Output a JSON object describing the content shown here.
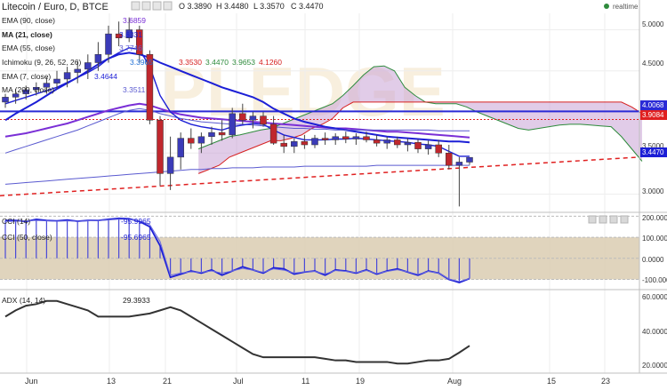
{
  "header": {
    "symbol": "Litecoin / Euro, D, BTCE",
    "ohlc": [
      "O 3.3890",
      "H 3.4480",
      "L 3.3570",
      "C 3.4470"
    ],
    "realtime": "realtime",
    "realtime_color": "#2e8b3c"
  },
  "indicators": [
    {
      "label": "EMA (90, close)",
      "value": "3.6859",
      "color": "#7a2fd6"
    },
    {
      "label": "MA (21, close)",
      "value": "3.6331",
      "color": "#1c1fd6"
    },
    {
      "label": "EMA (55, close)",
      "value": "3.7746",
      "color": "#5a5ad0"
    },
    {
      "label": "Ichimoku (9, 26, 52, 26)",
      "values": [
        "3.3965",
        "3.3530",
        "3.4470",
        "3.9653",
        "4.1260"
      ],
      "value_colors": [
        "#1e6fd6",
        "#d62020",
        "#2e8b3c",
        "#2e8b3c",
        "#d62020"
      ]
    },
    {
      "label": "EMA (7, close)",
      "value": "3.4644",
      "color": "#1c1fd6"
    },
    {
      "label": "MA (200, close)",
      "value": "3.3511",
      "color": "#5a5ad0"
    }
  ],
  "price_axis": {
    "ticks": [
      "5.0000",
      "4.5000",
      "4.0000",
      "3.5000",
      "3.0000"
    ],
    "badges": [
      {
        "text": "4.0068",
        "bg": "#2a2ad6"
      },
      {
        "text": "3.9084",
        "bg": "#e02020"
      },
      {
        "text": "3.4470",
        "bg": "#1c1fd6"
      }
    ]
  },
  "cci_panel": {
    "labels": [
      "CCI (14)",
      "CCI (50, close)"
    ],
    "values": [
      "-95.9965",
      "-95.6965"
    ],
    "ticks": [
      "200.0000",
      "100.0000",
      "0.0000",
      "-100.0000"
    ]
  },
  "adx_panel": {
    "label": "ADX (14, 14)",
    "value": "29.3933",
    "ticks": [
      "60.0000",
      "40.0000",
      "20.0000"
    ]
  },
  "x_axis": {
    "ticks": [
      "Jun",
      "13",
      "21",
      "Jul",
      "11",
      "19",
      "Aug",
      "15",
      "23"
    ]
  },
  "chart_data": {
    "type": "candlestick",
    "price_range": [
      2.8,
      5.2
    ],
    "candles": [
      {
        "o": 4.12,
        "h": 4.22,
        "l": 4.05,
        "c": 4.18
      },
      {
        "o": 4.18,
        "h": 4.28,
        "l": 4.1,
        "c": 4.22
      },
      {
        "o": 4.22,
        "h": 4.32,
        "l": 4.15,
        "c": 4.27
      },
      {
        "o": 4.27,
        "h": 4.36,
        "l": 4.2,
        "c": 4.3
      },
      {
        "o": 4.3,
        "h": 4.42,
        "l": 4.22,
        "c": 4.35
      },
      {
        "o": 4.35,
        "h": 4.5,
        "l": 4.28,
        "c": 4.4
      },
      {
        "o": 4.4,
        "h": 4.55,
        "l": 4.3,
        "c": 4.48
      },
      {
        "o": 4.48,
        "h": 4.62,
        "l": 4.35,
        "c": 4.52
      },
      {
        "o": 4.52,
        "h": 4.7,
        "l": 4.4,
        "c": 4.6
      },
      {
        "o": 4.6,
        "h": 4.85,
        "l": 4.5,
        "c": 4.7
      },
      {
        "o": 4.7,
        "h": 5.05,
        "l": 4.6,
        "c": 4.95
      },
      {
        "o": 4.95,
        "h": 5.1,
        "l": 4.8,
        "c": 4.9
      },
      {
        "o": 4.9,
        "h": 5.15,
        "l": 4.85,
        "c": 5.0
      },
      {
        "o": 5.0,
        "h": 5.05,
        "l": 4.6,
        "c": 4.7
      },
      {
        "o": 4.7,
        "h": 4.75,
        "l": 3.85,
        "c": 3.9
      },
      {
        "o": 3.9,
        "h": 3.95,
        "l": 3.1,
        "c": 3.25
      },
      {
        "o": 3.25,
        "h": 3.7,
        "l": 3.05,
        "c": 3.45
      },
      {
        "o": 3.45,
        "h": 3.75,
        "l": 3.3,
        "c": 3.68
      },
      {
        "o": 3.68,
        "h": 3.8,
        "l": 3.55,
        "c": 3.62
      },
      {
        "o": 3.62,
        "h": 3.75,
        "l": 3.5,
        "c": 3.7
      },
      {
        "o": 3.7,
        "h": 3.82,
        "l": 3.6,
        "c": 3.75
      },
      {
        "o": 3.75,
        "h": 3.9,
        "l": 3.65,
        "c": 3.72
      },
      {
        "o": 3.72,
        "h": 4.05,
        "l": 3.68,
        "c": 3.98
      },
      {
        "o": 3.98,
        "h": 4.1,
        "l": 3.85,
        "c": 3.9
      },
      {
        "o": 3.9,
        "h": 4.0,
        "l": 3.8,
        "c": 3.95
      },
      {
        "o": 3.95,
        "h": 4.0,
        "l": 3.82,
        "c": 3.85
      },
      {
        "o": 3.85,
        "h": 3.95,
        "l": 3.6,
        "c": 3.62
      },
      {
        "o": 3.62,
        "h": 3.72,
        "l": 3.5,
        "c": 3.58
      },
      {
        "o": 3.58,
        "h": 3.68,
        "l": 3.5,
        "c": 3.64
      },
      {
        "o": 3.64,
        "h": 3.72,
        "l": 3.55,
        "c": 3.6
      },
      {
        "o": 3.6,
        "h": 3.72,
        "l": 3.56,
        "c": 3.68
      },
      {
        "o": 3.68,
        "h": 3.75,
        "l": 3.6,
        "c": 3.66
      },
      {
        "o": 3.66,
        "h": 3.74,
        "l": 3.6,
        "c": 3.7
      },
      {
        "o": 3.7,
        "h": 3.76,
        "l": 3.62,
        "c": 3.67
      },
      {
        "o": 3.67,
        "h": 3.74,
        "l": 3.6,
        "c": 3.7
      },
      {
        "o": 3.7,
        "h": 3.76,
        "l": 3.63,
        "c": 3.66
      },
      {
        "o": 3.66,
        "h": 3.72,
        "l": 3.58,
        "c": 3.62
      },
      {
        "o": 3.62,
        "h": 3.7,
        "l": 3.55,
        "c": 3.66
      },
      {
        "o": 3.66,
        "h": 3.7,
        "l": 3.56,
        "c": 3.6
      },
      {
        "o": 3.6,
        "h": 3.68,
        "l": 3.52,
        "c": 3.63
      },
      {
        "o": 3.63,
        "h": 3.67,
        "l": 3.5,
        "c": 3.55
      },
      {
        "o": 3.55,
        "h": 3.65,
        "l": 3.48,
        "c": 3.6
      },
      {
        "o": 3.6,
        "h": 3.66,
        "l": 3.45,
        "c": 3.5
      },
      {
        "o": 3.5,
        "h": 3.6,
        "l": 3.3,
        "c": 3.35
      },
      {
        "o": 3.35,
        "h": 3.45,
        "l": 2.85,
        "c": 3.39
      },
      {
        "o": 3.389,
        "h": 3.448,
        "l": 3.357,
        "c": 3.447
      }
    ],
    "series": [
      {
        "name": "EMA (90, close)",
        "color": "#7a2fd6",
        "values": [
          3.7,
          3.72,
          3.74,
          3.77,
          3.8,
          3.83,
          3.86,
          3.9,
          3.94,
          3.98,
          4.02,
          4.05,
          4.08,
          4.1,
          4.08,
          4.04,
          4.0,
          3.97,
          3.95,
          3.93,
          3.92,
          3.91,
          3.9,
          3.89,
          3.88,
          3.87,
          3.86,
          3.85,
          3.84,
          3.83,
          3.82,
          3.81,
          3.8,
          3.8,
          3.79,
          3.78,
          3.77,
          3.76,
          3.76,
          3.75,
          3.74,
          3.73,
          3.72,
          3.71,
          3.7,
          3.69
        ]
      },
      {
        "name": "MA (21, close)",
        "color": "#1c1fd6",
        "values": [
          3.9,
          3.98,
          4.05,
          4.12,
          4.2,
          4.28,
          4.35,
          4.42,
          4.5,
          4.58,
          4.65,
          4.7,
          4.72,
          4.7,
          4.66,
          4.6,
          4.55,
          4.5,
          4.45,
          4.4,
          4.35,
          4.3,
          4.26,
          4.22,
          4.18,
          4.12,
          4.04,
          3.98,
          3.92,
          3.88,
          3.85,
          3.82,
          3.8,
          3.78,
          3.76,
          3.74,
          3.72,
          3.7,
          3.69,
          3.68,
          3.67,
          3.66,
          3.65,
          3.64,
          3.64,
          3.63
        ]
      },
      {
        "name": "EMA (55, close)",
        "color": "#5a5ad0",
        "values": [
          3.5,
          3.54,
          3.58,
          3.62,
          3.66,
          3.7,
          3.74,
          3.78,
          3.83,
          3.88,
          3.93,
          3.98,
          4.02,
          4.04,
          4.02,
          3.98,
          3.95,
          3.92,
          3.9,
          3.88,
          3.87,
          3.86,
          3.85,
          3.85,
          3.84,
          3.83,
          3.82,
          3.81,
          3.8,
          3.8,
          3.79,
          3.79,
          3.78,
          3.78,
          3.78,
          3.78,
          3.78,
          3.78,
          3.78,
          3.78,
          3.78,
          3.78,
          3.77,
          3.77,
          3.77,
          3.77
        ]
      },
      {
        "name": "EMA (7, close)",
        "color": "#1c1fd6",
        "values": [
          4.1,
          4.14,
          4.18,
          4.22,
          4.26,
          4.3,
          4.36,
          4.42,
          4.48,
          4.55,
          4.65,
          4.72,
          4.78,
          4.76,
          4.55,
          4.2,
          4.0,
          3.9,
          3.85,
          3.82,
          3.8,
          3.78,
          3.82,
          3.84,
          3.86,
          3.85,
          3.78,
          3.72,
          3.69,
          3.66,
          3.66,
          3.66,
          3.67,
          3.67,
          3.68,
          3.67,
          3.66,
          3.65,
          3.64,
          3.63,
          3.61,
          3.6,
          3.58,
          3.52,
          3.46,
          3.46
        ]
      },
      {
        "name": "MA (200, close)",
        "color": "#5a5ad0",
        "values": [
          3.12,
          3.13,
          3.14,
          3.15,
          3.16,
          3.17,
          3.18,
          3.19,
          3.2,
          3.21,
          3.22,
          3.23,
          3.24,
          3.25,
          3.26,
          3.27,
          3.28,
          3.29,
          3.3,
          3.3,
          3.31,
          3.31,
          3.32,
          3.32,
          3.32,
          3.33,
          3.33,
          3.33,
          3.33,
          3.34,
          3.34,
          3.34,
          3.34,
          3.34,
          3.34,
          3.34,
          3.35,
          3.35,
          3.35,
          3.35,
          3.35,
          3.35,
          3.35,
          3.35,
          3.35,
          3.35
        ]
      }
    ],
    "cloud": {
      "span_a": [
        3.55,
        3.6,
        3.65,
        3.7,
        3.72,
        3.75,
        3.78,
        3.8,
        3.85,
        3.9,
        3.95,
        4.0,
        4.05,
        4.1,
        4.2,
        4.32,
        4.45,
        4.55,
        4.56,
        4.5,
        4.3,
        4.2,
        4.12,
        4.1,
        4.1,
        4.1,
        4.06,
        4.0,
        3.95,
        3.9,
        3.85,
        3.8,
        3.78,
        3.8,
        3.82,
        3.84,
        3.85,
        3.85,
        3.84,
        3.83,
        3.82,
        3.7,
        3.55,
        3.4
      ],
      "span_b": [
        3.25,
        3.3,
        3.35,
        3.45,
        3.5,
        3.55,
        3.6,
        3.65,
        3.65,
        3.68,
        3.72,
        3.8,
        3.85,
        3.92,
        4.05,
        4.12,
        4.12,
        4.12,
        4.12,
        4.12,
        4.12,
        4.12,
        4.12,
        4.12,
        4.12,
        4.12,
        4.12,
        4.12,
        4.12,
        4.12,
        4.12,
        4.12,
        4.12,
        4.12,
        4.12,
        4.12,
        4.12,
        4.12,
        4.12,
        4.12,
        4.12,
        4.12,
        4.06,
        3.98
      ]
    },
    "horizontal_lines": [
      {
        "value": 4.0068,
        "color": "#2a2ad6"
      },
      {
        "value": 3.9084,
        "color": "#e02020"
      }
    ],
    "trendline": {
      "from": 2.98,
      "to": 3.45,
      "color": "#e02020"
    },
    "cci14": [
      180,
      180,
      175,
      185,
      180,
      178,
      182,
      176,
      180,
      180,
      185,
      190,
      188,
      175,
      150,
      60,
      -90,
      -75,
      -60,
      -70,
      -55,
      -80,
      -60,
      -40,
      -55,
      -70,
      -45,
      -50,
      -75,
      -65,
      -60,
      -80,
      -55,
      -60,
      -70,
      -55,
      -75,
      -60,
      -50,
      -65,
      -80,
      -60,
      -70,
      -100,
      -115,
      -96
    ],
    "cci50": [
      175,
      176,
      178,
      180,
      178,
      176,
      178,
      176,
      178,
      180,
      182,
      186,
      184,
      178,
      160,
      80,
      -80,
      -70,
      -64,
      -66,
      -60,
      -70,
      -60,
      -48,
      -56,
      -66,
      -50,
      -56,
      -70,
      -64,
      -62,
      -74,
      -58,
      -62,
      -68,
      -58,
      -72,
      -62,
      -54,
      -64,
      -76,
      -62,
      -70,
      -98,
      -110,
      -96
    ],
    "adx": [
      48,
      52,
      55,
      56,
      58,
      58,
      56,
      54,
      52,
      48,
      48,
      48,
      48,
      49,
      50,
      52,
      54,
      52,
      48,
      44,
      40,
      36,
      32,
      28,
      24,
      22,
      22,
      22,
      22,
      22,
      22,
      21,
      20,
      20,
      19,
      19,
      19,
      19,
      18,
      18,
      19,
      20,
      20,
      21,
      25,
      29.3933
    ]
  }
}
